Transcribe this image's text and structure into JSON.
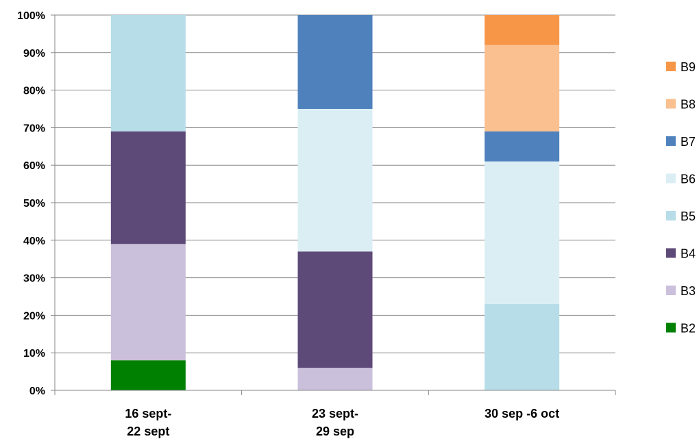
{
  "chart_data": {
    "type": "bar",
    "stacked": true,
    "percent_stacked": true,
    "title": "",
    "categories": [
      [
        "16 sept-",
        "22 sept"
      ],
      [
        "23 sept-",
        "29 sep"
      ],
      [
        "30 sep -6 oct"
      ]
    ],
    "series": [
      {
        "name": "B2",
        "color": "#008000",
        "values": [
          8,
          0,
          0
        ]
      },
      {
        "name": "B3",
        "color": "#cbc0db",
        "values": [
          31,
          6,
          0
        ]
      },
      {
        "name": "B4",
        "color": "#5e4a78",
        "values": [
          30,
          31,
          0
        ]
      },
      {
        "name": "B5",
        "color": "#b7dde8",
        "values": [
          31,
          0,
          23
        ]
      },
      {
        "name": "B6",
        "color": "#dbeef4",
        "values": [
          0,
          38,
          38
        ]
      },
      {
        "name": "B7",
        "color": "#4f81bd",
        "values": [
          0,
          25,
          8
        ]
      },
      {
        "name": "B8",
        "color": "#fac090",
        "values": [
          0,
          0,
          23
        ]
      },
      {
        "name": "B9",
        "color": "#f79646",
        "values": [
          0,
          0,
          8
        ]
      }
    ],
    "ylim": [
      0,
      100
    ],
    "yticks": [
      "0%",
      "10%",
      "20%",
      "30%",
      "40%",
      "50%",
      "60%",
      "70%",
      "80%",
      "90%",
      "100%"
    ],
    "grid": true,
    "legend_position": "right",
    "xlabel": "",
    "ylabel": ""
  }
}
